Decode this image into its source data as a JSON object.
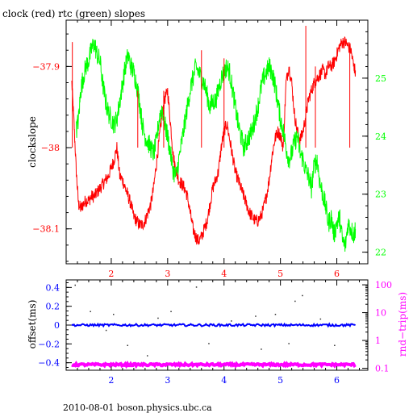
{
  "title": "clock (red) rtc (green) slopes",
  "footer": "2010-08-01 boson.physics.ubc.ca",
  "colors": {
    "red": "#ff0000",
    "green": "#00ff00",
    "blue": "#0000ff",
    "magenta": "#ff00ff",
    "axis": "#000000"
  },
  "chart_data": [
    {
      "type": "line",
      "title": "clock (red) rtc (green) slopes",
      "xlim": [
        1.2,
        6.55
      ],
      "x_ticks": [
        2,
        3,
        4,
        5,
        6
      ],
      "ylabel": "clockslope",
      "ylim": [
        -38.143,
        -37.843
      ],
      "y_ticks_left": [
        -37.9,
        -38,
        -38.1
      ],
      "y_ticks_left_labels": [
        "−37.9",
        "−38",
        "−38.1"
      ],
      "y2lim": [
        21.8,
        26.0
      ],
      "y_ticks_right": [
        22,
        23,
        24,
        25
      ],
      "series": [
        {
          "axis": "left",
          "color": "#ff0000",
          "points": [
            [
              1.3,
              -37.92
            ],
            [
              1.34,
              -37.97
            ],
            [
              1.38,
              -38.03
            ],
            [
              1.42,
              -38.07
            ],
            [
              1.46,
              -38.075
            ],
            [
              1.5,
              -38.07
            ],
            [
              1.55,
              -38.065
            ],
            [
              1.6,
              -38.065
            ],
            [
              1.65,
              -38.06
            ],
            [
              1.7,
              -38.06
            ],
            [
              1.75,
              -38.055
            ],
            [
              1.8,
              -38.05
            ],
            [
              1.85,
              -38.045
            ],
            [
              1.9,
              -38.04
            ],
            [
              1.95,
              -38.035
            ],
            [
              2.0,
              -38.025
            ],
            [
              2.05,
              -38.015
            ],
            [
              2.1,
              -38.0
            ],
            [
              2.15,
              -38.035
            ],
            [
              2.2,
              -38.04
            ],
            [
              2.25,
              -38.05
            ],
            [
              2.3,
              -38.06
            ],
            [
              2.35,
              -38.07
            ],
            [
              2.4,
              -38.085
            ],
            [
              2.45,
              -38.09
            ],
            [
              2.5,
              -38.095
            ],
            [
              2.55,
              -38.095
            ],
            [
              2.6,
              -38.09
            ],
            [
              2.65,
              -38.08
            ],
            [
              2.7,
              -38.07
            ],
            [
              2.75,
              -38.05
            ],
            [
              2.8,
              -38.02
            ],
            [
              2.85,
              -37.99
            ],
            [
              2.9,
              -37.96
            ],
            [
              2.95,
              -37.94
            ],
            [
              3.0,
              -37.93
            ],
            [
              3.05,
              -37.97
            ],
            [
              3.1,
              -38.01
            ],
            [
              3.15,
              -38.03
            ],
            [
              3.2,
              -38.04
            ],
            [
              3.25,
              -38.045
            ],
            [
              3.3,
              -38.05
            ],
            [
              3.35,
              -38.06
            ],
            [
              3.4,
              -38.08
            ],
            [
              3.45,
              -38.1
            ],
            [
              3.5,
              -38.11
            ],
            [
              3.55,
              -38.115
            ],
            [
              3.6,
              -38.11
            ],
            [
              3.65,
              -38.1
            ],
            [
              3.7,
              -38.09
            ],
            [
              3.75,
              -38.07
            ],
            [
              3.8,
              -38.05
            ],
            [
              3.85,
              -38.04
            ],
            [
              3.9,
              -38.03
            ],
            [
              3.95,
              -38.0
            ],
            [
              4.0,
              -37.98
            ],
            [
              4.05,
              -37.97
            ],
            [
              4.1,
              -37.99
            ],
            [
              4.15,
              -38.01
            ],
            [
              4.2,
              -38.03
            ],
            [
              4.25,
              -38.04
            ],
            [
              4.3,
              -38.05
            ],
            [
              4.35,
              -38.06
            ],
            [
              4.4,
              -38.07
            ],
            [
              4.45,
              -38.08
            ],
            [
              4.5,
              -38.085
            ],
            [
              4.55,
              -38.09
            ],
            [
              4.6,
              -38.09
            ],
            [
              4.65,
              -38.085
            ],
            [
              4.7,
              -38.075
            ],
            [
              4.75,
              -38.06
            ],
            [
              4.8,
              -38.04
            ],
            [
              4.85,
              -38.01
            ],
            [
              4.9,
              -37.99
            ],
            [
              4.95,
              -37.98
            ],
            [
              5.0,
              -37.985
            ],
            [
              5.05,
              -38.0
            ],
            [
              5.1,
              -37.92
            ],
            [
              5.15,
              -37.9
            ],
            [
              5.2,
              -37.92
            ],
            [
              5.25,
              -37.96
            ],
            [
              5.3,
              -37.98
            ],
            [
              5.35,
              -37.99
            ],
            [
              5.4,
              -37.98
            ],
            [
              5.45,
              -37.96
            ],
            [
              5.5,
              -37.94
            ],
            [
              5.55,
              -37.93
            ],
            [
              5.6,
              -37.92
            ],
            [
              5.65,
              -37.915
            ],
            [
              5.7,
              -37.91
            ],
            [
              5.75,
              -37.905
            ],
            [
              5.8,
              -37.91
            ],
            [
              5.85,
              -37.9
            ],
            [
              5.9,
              -37.9
            ],
            [
              5.95,
              -37.895
            ],
            [
              6.0,
              -37.885
            ],
            [
              6.05,
              -37.875
            ],
            [
              6.1,
              -37.87
            ],
            [
              6.15,
              -37.87
            ],
            [
              6.2,
              -37.875
            ],
            [
              6.25,
              -37.88
            ],
            [
              6.3,
              -37.9
            ],
            [
              6.33,
              -37.905
            ]
          ]
        },
        {
          "axis": "right",
          "color": "#00ff00",
          "points": [
            [
              1.38,
              24.1
            ],
            [
              1.42,
              24.3
            ],
            [
              1.46,
              24.8
            ],
            [
              1.5,
              25.0
            ],
            [
              1.55,
              25.2
            ],
            [
              1.6,
              25.3
            ],
            [
              1.65,
              25.5
            ],
            [
              1.7,
              25.6
            ],
            [
              1.75,
              25.4
            ],
            [
              1.8,
              25.3
            ],
            [
              1.85,
              24.9
            ],
            [
              1.9,
              24.6
            ],
            [
              1.95,
              24.4
            ],
            [
              2.0,
              24.3
            ],
            [
              2.05,
              24.2
            ],
            [
              2.1,
              24.3
            ],
            [
              2.15,
              24.6
            ],
            [
              2.2,
              24.9
            ],
            [
              2.25,
              25.2
            ],
            [
              2.3,
              25.4
            ],
            [
              2.35,
              25.2
            ],
            [
              2.4,
              25.1
            ],
            [
              2.45,
              24.9
            ],
            [
              2.5,
              24.6
            ],
            [
              2.55,
              24.2
            ],
            [
              2.6,
              24.0
            ],
            [
              2.65,
              23.9
            ],
            [
              2.7,
              23.8
            ],
            [
              2.75,
              23.7
            ],
            [
              2.8,
              23.9
            ],
            [
              2.85,
              24.3
            ],
            [
              2.9,
              24.5
            ],
            [
              2.95,
              24.2
            ],
            [
              3.0,
              24.0
            ],
            [
              3.05,
              23.7
            ],
            [
              3.1,
              23.4
            ],
            [
              3.15,
              23.3
            ],
            [
              3.2,
              23.6
            ],
            [
              3.25,
              23.9
            ],
            [
              3.3,
              24.2
            ],
            [
              3.35,
              24.5
            ],
            [
              3.4,
              24.8
            ],
            [
              3.45,
              25.0
            ],
            [
              3.5,
              25.2
            ],
            [
              3.55,
              25.1
            ],
            [
              3.6,
              25.0
            ],
            [
              3.65,
              24.9
            ],
            [
              3.7,
              24.7
            ],
            [
              3.75,
              24.5
            ],
            [
              3.8,
              24.6
            ],
            [
              3.85,
              24.6
            ],
            [
              3.9,
              24.8
            ],
            [
              3.95,
              25.0
            ],
            [
              4.0,
              25.1
            ],
            [
              4.05,
              25.2
            ],
            [
              4.1,
              25.1
            ],
            [
              4.15,
              24.8
            ],
            [
              4.2,
              24.5
            ],
            [
              4.25,
              24.2
            ],
            [
              4.3,
              24.0
            ],
            [
              4.35,
              23.8
            ],
            [
              4.4,
              23.9
            ],
            [
              4.45,
              24.0
            ],
            [
              4.5,
              24.1
            ],
            [
              4.55,
              24.3
            ],
            [
              4.6,
              24.5
            ],
            [
              4.65,
              24.8
            ],
            [
              4.7,
              25.0
            ],
            [
              4.75,
              25.1
            ],
            [
              4.8,
              25.2
            ],
            [
              4.85,
              25.1
            ],
            [
              4.9,
              24.9
            ],
            [
              4.95,
              24.6
            ],
            [
              5.0,
              24.3
            ],
            [
              5.05,
              24.1
            ],
            [
              5.1,
              23.8
            ],
            [
              5.15,
              23.6
            ],
            [
              5.2,
              23.7
            ],
            [
              5.25,
              23.9
            ],
            [
              5.3,
              24.0
            ],
            [
              5.35,
              23.7
            ],
            [
              5.4,
              23.6
            ],
            [
              5.45,
              23.4
            ],
            [
              5.5,
              23.3
            ],
            [
              5.55,
              23.1
            ],
            [
              5.6,
              23.5
            ],
            [
              5.65,
              23.6
            ],
            [
              5.7,
              23.2
            ],
            [
              5.75,
              23.0
            ],
            [
              5.8,
              22.8
            ],
            [
              5.85,
              22.5
            ],
            [
              5.9,
              22.6
            ],
            [
              5.95,
              22.3
            ],
            [
              6.0,
              22.5
            ],
            [
              6.05,
              22.6
            ],
            [
              6.1,
              22.2
            ],
            [
              6.15,
              22.1
            ],
            [
              6.2,
              22.5
            ],
            [
              6.25,
              22.4
            ],
            [
              6.3,
              22.3
            ],
            [
              6.33,
              22.4
            ]
          ]
        }
      ]
    },
    {
      "type": "scatter",
      "xlim": [
        1.2,
        6.55
      ],
      "x_ticks": [
        2,
        3,
        4,
        5,
        6
      ],
      "ylabel": "offset(ms)",
      "ylim": [
        -0.48,
        0.48
      ],
      "y_ticks_left": [
        0.4,
        0.2,
        0,
        -0.2,
        -0.4
      ],
      "y_ticks_left_labels": [
        "0.4",
        "0.2",
        "0",
        "−0.2",
        "−0.4"
      ],
      "y2label": "rnd−trip(ms)",
      "y2_scale": "log",
      "y2lim": [
        0.085,
        150
      ],
      "y_ticks_right": [
        0.1,
        1,
        10,
        100
      ],
      "y_ticks_right_labels": [
        "0.1",
        "1",
        "10",
        "100"
      ],
      "series": [
        {
          "axis": "left",
          "color": "#0000ff",
          "x_range": [
            1.3,
            6.33
          ],
          "center": 0.0,
          "spread": 0.012
        },
        {
          "axis": "right",
          "color": "#ff00ff",
          "x_range": [
            1.3,
            6.33
          ],
          "center": 0.135,
          "spread": 0.022
        }
      ],
      "outliers": [
        [
          1.35,
          0.43
        ],
        [
          1.62,
          0.15
        ],
        [
          2.03,
          0.12
        ],
        [
          2.28,
          -0.21
        ],
        [
          2.63,
          -0.32
        ],
        [
          3.05,
          0.15
        ],
        [
          3.5,
          0.41
        ],
        [
          3.72,
          -0.19
        ],
        [
          4.12,
          0.05
        ],
        [
          4.55,
          0.1
        ],
        [
          4.65,
          -0.25
        ],
        [
          5.14,
          -0.19
        ],
        [
          5.25,
          0.26
        ],
        [
          5.38,
          0.32
        ],
        [
          5.7,
          0.07
        ],
        [
          5.95,
          -0.21
        ],
        [
          2.82,
          0.08
        ],
        [
          1.9,
          -0.05
        ],
        [
          4.9,
          0.12
        ]
      ]
    }
  ]
}
